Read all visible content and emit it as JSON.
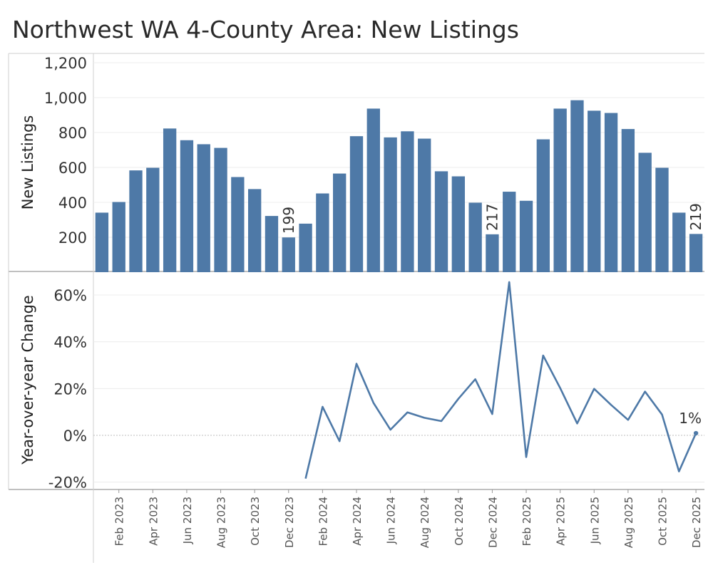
{
  "title": "Northwest WA 4-County Area: New Listings",
  "chart_data": [
    {
      "type": "bar",
      "ylabel": "New Listings",
      "ylim": [
        0,
        1200
      ],
      "yticks": [
        "200",
        "400",
        "600",
        "800",
        "1,000",
        "1,200"
      ],
      "yticks_values": [
        200,
        400,
        600,
        800,
        1000,
        1200
      ],
      "grid": true,
      "color": "#4e79a7",
      "categories": [
        "Jan 2023",
        "Feb 2023",
        "Mar 2023",
        "Apr 2023",
        "May 2023",
        "Jun 2023",
        "Jul 2023",
        "Aug 2023",
        "Sep 2023",
        "Oct 2023",
        "Nov 2023",
        "Dec 2023",
        "Jan 2024",
        "Feb 2024",
        "Mar 2024",
        "Apr 2024",
        "May 2024",
        "Jun 2024",
        "Jul 2024",
        "Aug 2024",
        "Sep 2024",
        "Oct 2024",
        "Nov 2024",
        "Dec 2024",
        "Jan 2025",
        "Feb 2025",
        "Mar 2025",
        "Apr 2025",
        "May 2025",
        "Jun 2025",
        "Jul 2025",
        "Aug 2025",
        "Sep 2025",
        "Oct 2025",
        "Nov 2025",
        "Dec 2025"
      ],
      "values": [
        341,
        402,
        583,
        598,
        823,
        756,
        733,
        712,
        545,
        476,
        322,
        199,
        278,
        451,
        565,
        779,
        937,
        772,
        807,
        765,
        578,
        549,
        398,
        217,
        461,
        409,
        761,
        937,
        985,
        925,
        912,
        820,
        684,
        598,
        341,
        219
      ],
      "data_labels": [
        {
          "category": "Dec 2023",
          "text": "199"
        },
        {
          "category": "Dec 2024",
          "text": "217"
        },
        {
          "category": "Dec 2025",
          "text": "219"
        }
      ]
    },
    {
      "type": "line",
      "ylabel": "Year-over-year Change",
      "ylim": [
        -0.22,
        0.66
      ],
      "yticks": [
        "-20%",
        "0%",
        "20%",
        "40%",
        "60%"
      ],
      "yticks_values": [
        -0.2,
        0,
        0.2,
        0.4,
        0.6
      ],
      "grid": true,
      "color": "#4e79a7",
      "categories": [
        "Jan 2024",
        "Feb 2024",
        "Mar 2024",
        "Apr 2024",
        "May 2024",
        "Jun 2024",
        "Jul 2024",
        "Aug 2024",
        "Sep 2024",
        "Oct 2024",
        "Nov 2024",
        "Dec 2024",
        "Jan 2025",
        "Feb 2025",
        "Mar 2025",
        "Apr 2025",
        "May 2025",
        "Jun 2025",
        "Jul 2025",
        "Aug 2025",
        "Sep 2025",
        "Oct 2025",
        "Nov 2025",
        "Dec 2025"
      ],
      "values": [
        -0.185,
        0.122,
        -0.025,
        0.306,
        0.139,
        0.024,
        0.098,
        0.075,
        0.061,
        0.156,
        0.24,
        0.091,
        0.655,
        -0.093,
        0.341,
        0.202,
        0.051,
        0.199,
        0.13,
        0.066,
        0.187,
        0.089,
        -0.154,
        0.009
      ],
      "data_labels": [
        {
          "category": "Dec 2025",
          "text": "1%"
        }
      ]
    }
  ],
  "x_axis": {
    "tick_labels": [
      "Feb 2023",
      "Apr 2023",
      "Jun 2023",
      "Aug 2023",
      "Oct 2023",
      "Dec 2023",
      "Feb 2024",
      "Apr 2024",
      "Jun 2024",
      "Aug 2024",
      "Oct 2024",
      "Dec 2024",
      "Feb 2025",
      "Apr 2025",
      "Jun 2025",
      "Aug 2025",
      "Oct 2025",
      "Dec 2025"
    ]
  }
}
